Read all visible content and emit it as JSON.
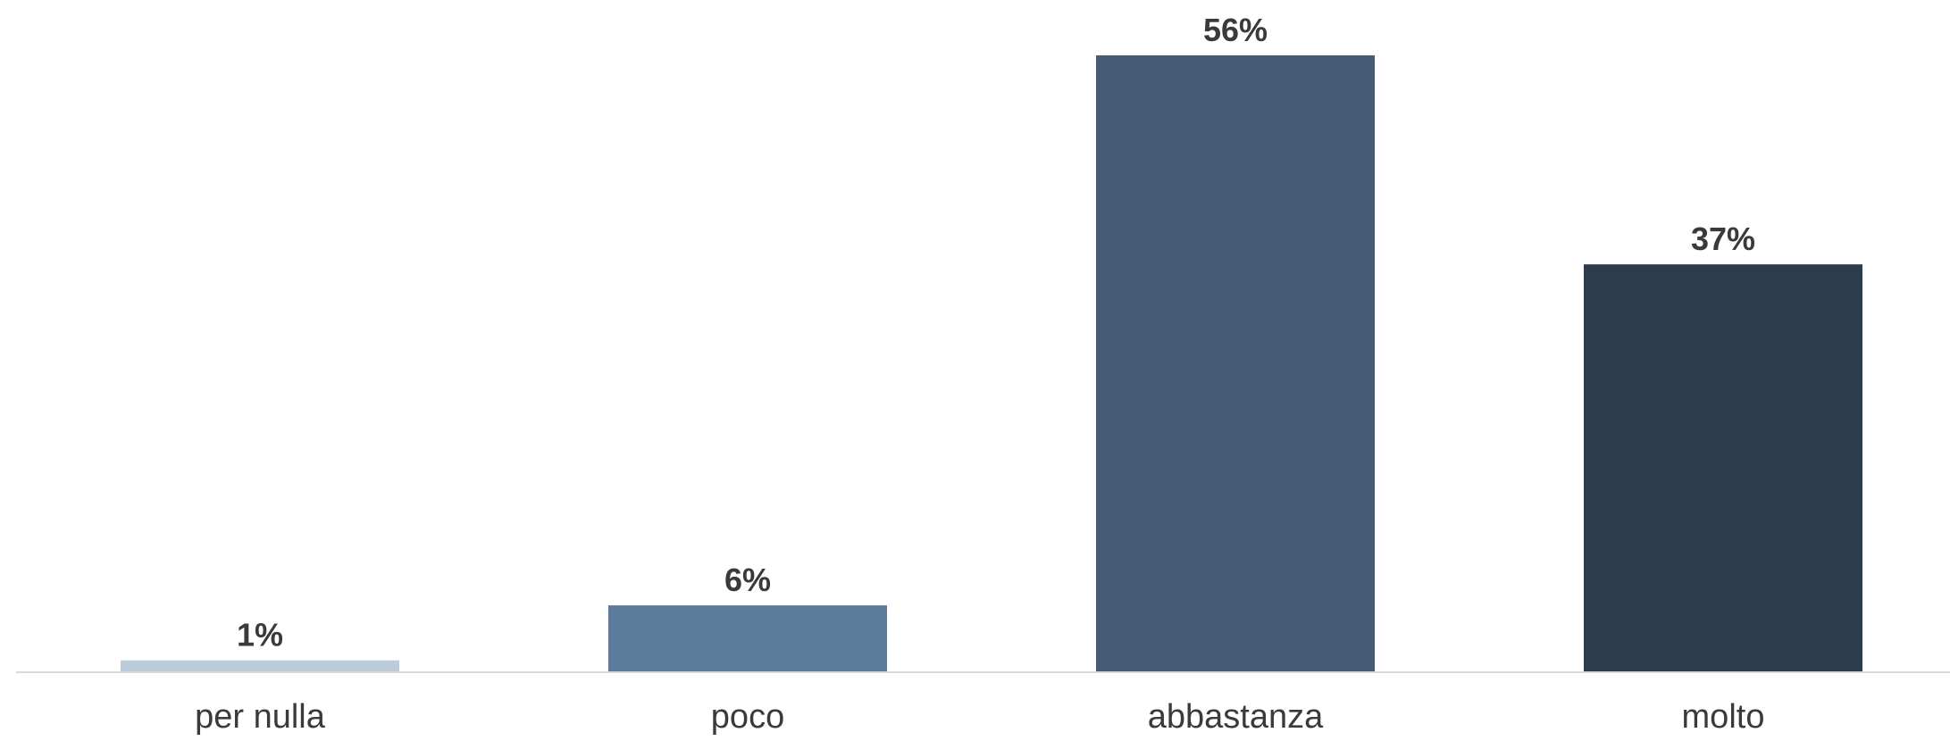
{
  "chart_data": {
    "type": "bar",
    "title": "",
    "xlabel": "",
    "ylabel": "",
    "categories": [
      "per nulla",
      "poco",
      "abbastanza",
      "molto"
    ],
    "values": [
      1,
      6,
      56,
      37
    ],
    "value_labels": [
      "1%",
      "6%",
      "56%",
      "37%"
    ],
    "unit": "%",
    "ylim": [
      0,
      56
    ],
    "grid": false,
    "legend": "none",
    "colors": [
      "#bccbd9",
      "#5c7a99",
      "#465c75",
      "#2e3d4d"
    ],
    "baseline_color": "#d9d9d9"
  }
}
